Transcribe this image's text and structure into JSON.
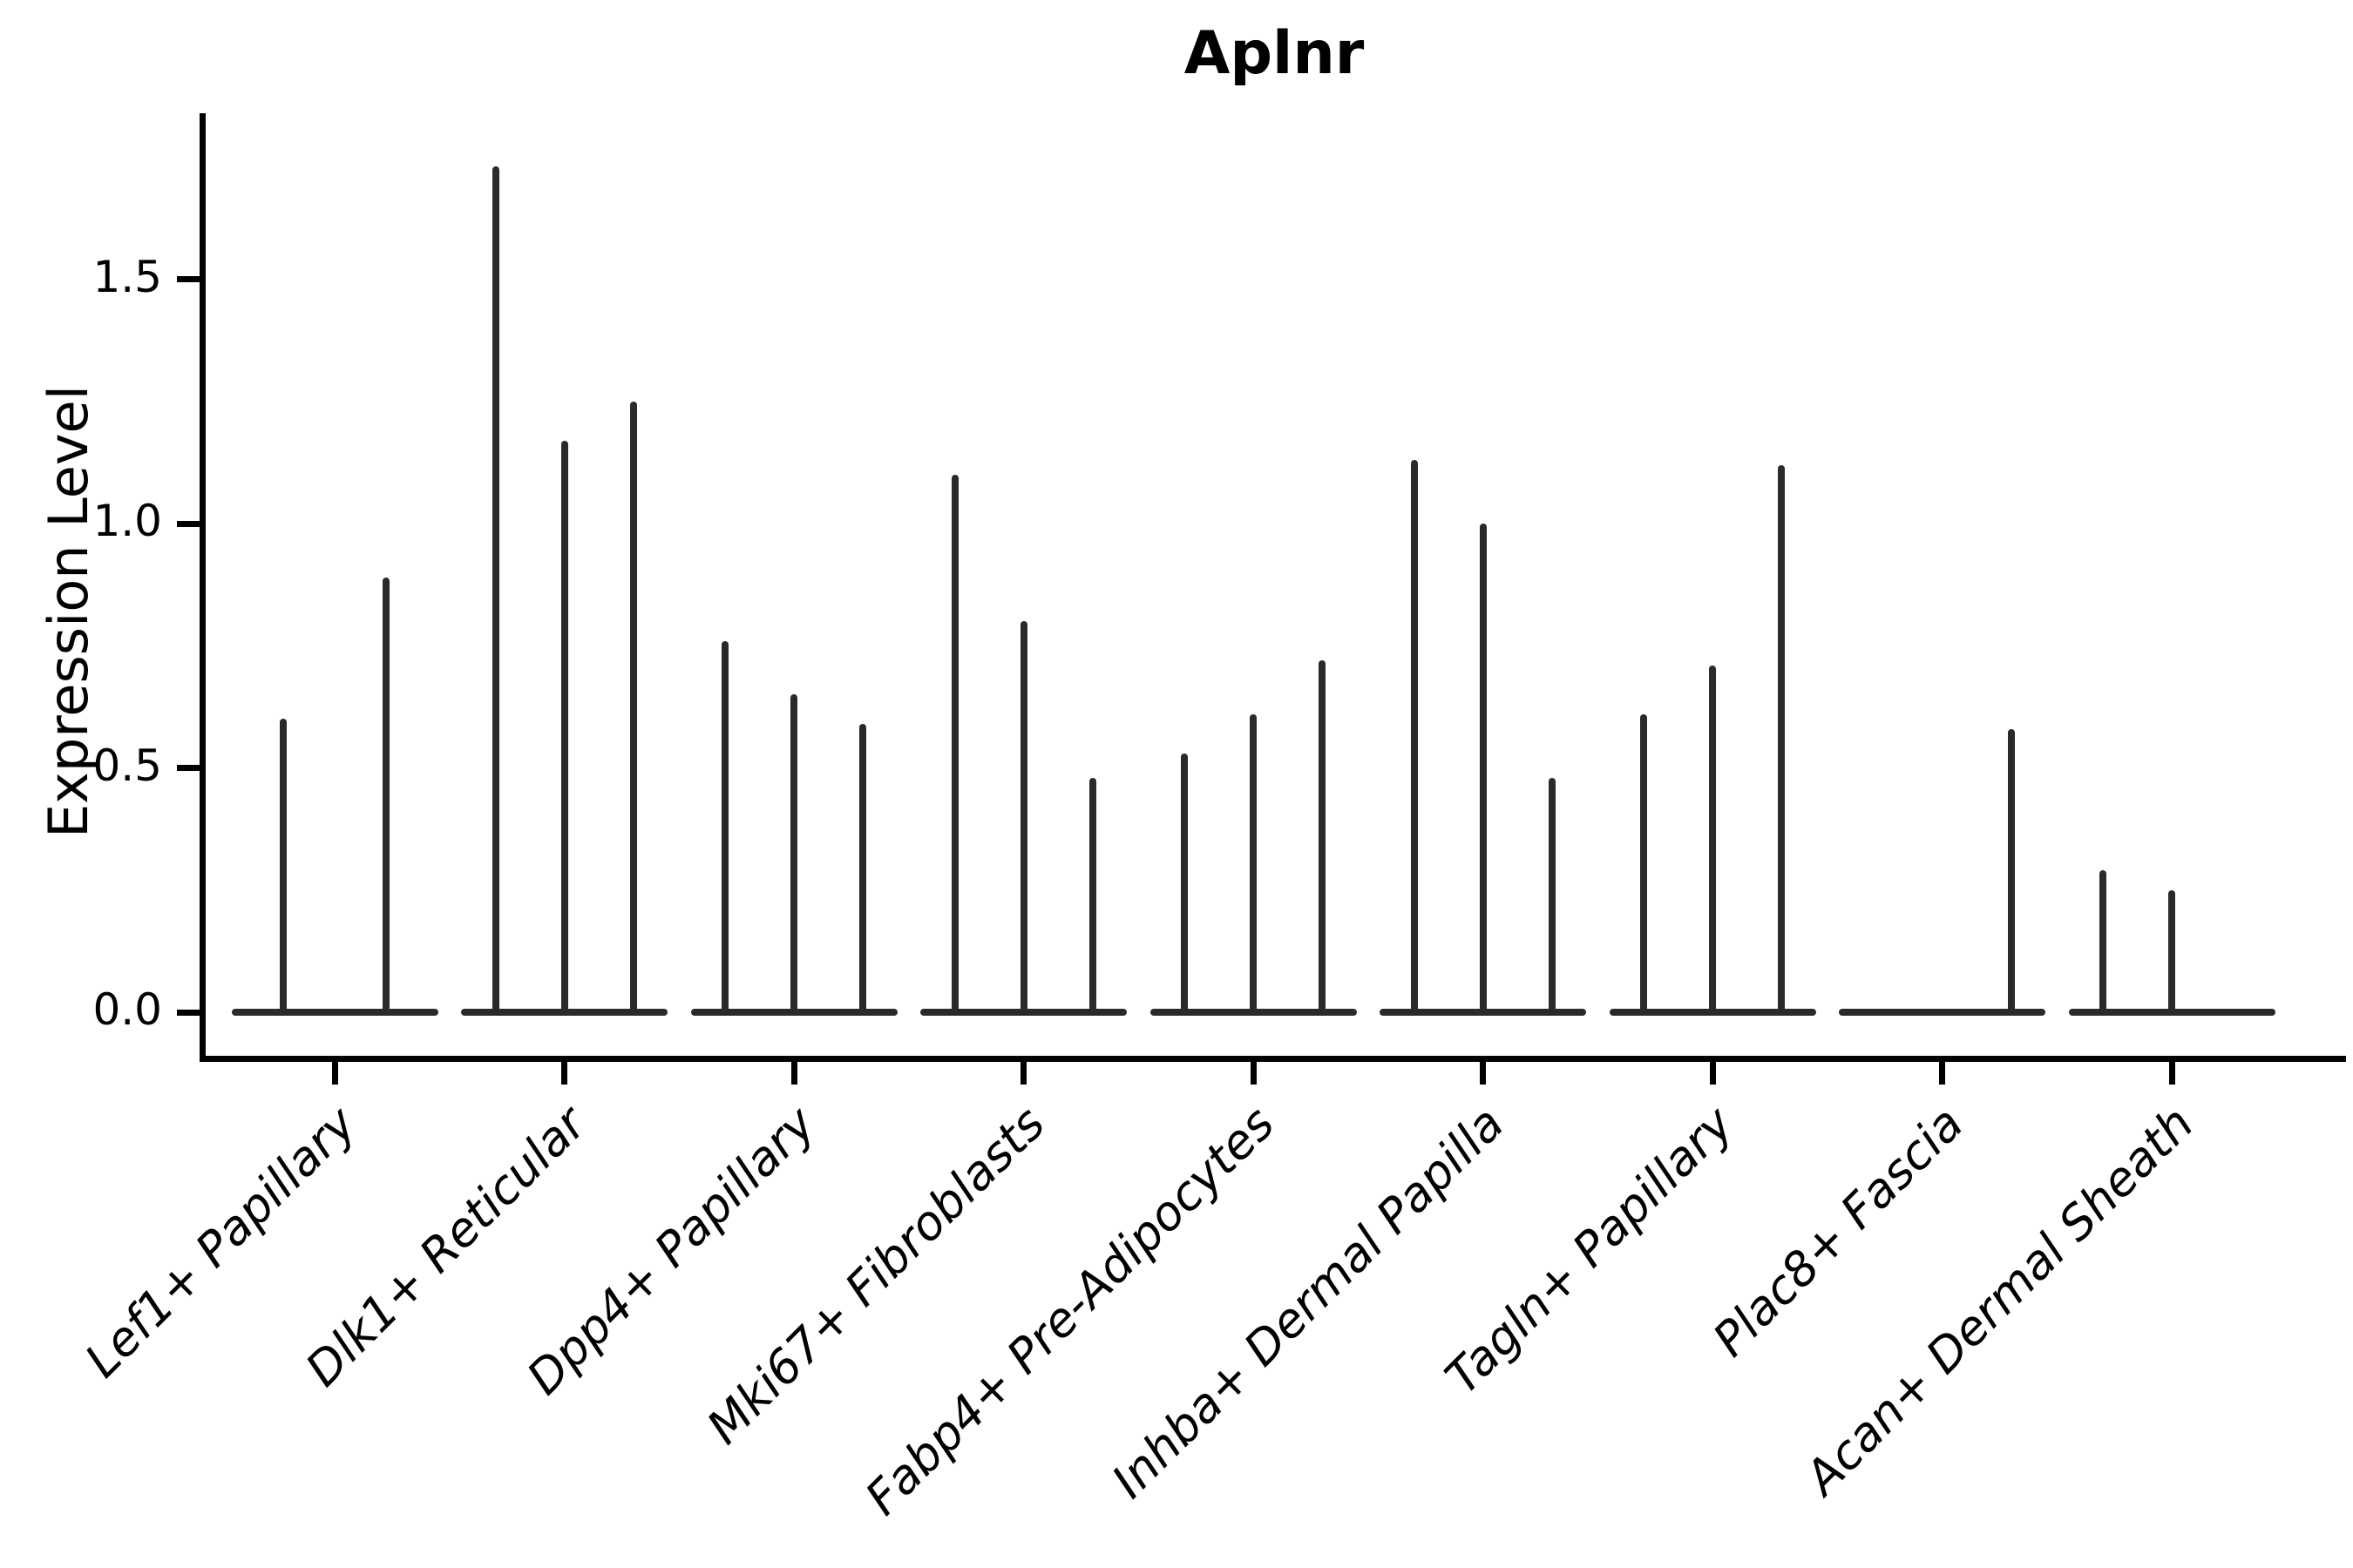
{
  "title": "Aplnr",
  "y_axis": {
    "label": "Expression Level",
    "tick_labels": [
      "0.0",
      "0.5",
      "1.0",
      "1.5"
    ],
    "tick_values": [
      0.0,
      0.5,
      1.0,
      1.5
    ]
  },
  "colors": {
    "violin_line": "#2a2a2a",
    "axis": "#000000",
    "background": "#ffffff"
  },
  "chart_data": {
    "type": "violin",
    "title": "Aplnr",
    "xlabel": "",
    "ylabel": "Expression Level",
    "ylim": [
      -0.09,
      1.84
    ],
    "yticks": [
      0.0,
      0.5,
      1.0,
      1.5
    ],
    "grid": false,
    "legend": "none",
    "description": "Stacked-sample violin plot of Aplnr expression per fibroblast cluster; each category shows 2-3 extremely thin violins (spikes) rising from a flat baseline at 0. Values are the maximum expression level (spike top) per violin; null means no spike (all zero).",
    "categories": [
      {
        "label": "Lef1+ Papillary",
        "spikes": [
          0.6,
          0.89
        ]
      },
      {
        "label": "Dlk1+ Reticular",
        "spikes": [
          1.73,
          1.17,
          1.25
        ]
      },
      {
        "label": "Dpp4+ Papillary",
        "spikes": [
          0.76,
          0.65,
          0.59
        ]
      },
      {
        "label": "Mki67+ Fibroblasts",
        "spikes": [
          1.1,
          0.8,
          0.48
        ]
      },
      {
        "label": "Fabp4+ Pre-Adipocytes",
        "spikes": [
          0.53,
          0.61,
          0.72
        ]
      },
      {
        "label": "Inhba+ Dermal Papilla",
        "spikes": [
          1.13,
          1.0,
          0.48
        ]
      },
      {
        "label": "Tagln+ Papillary",
        "spikes": [
          0.61,
          0.71,
          1.12
        ]
      },
      {
        "label": "Plac8+ Fascia",
        "spikes": [
          null,
          null,
          0.58
        ]
      },
      {
        "label": "Acan+ Dermal Sheath",
        "spikes": [
          0.29,
          0.25,
          null
        ]
      }
    ]
  }
}
